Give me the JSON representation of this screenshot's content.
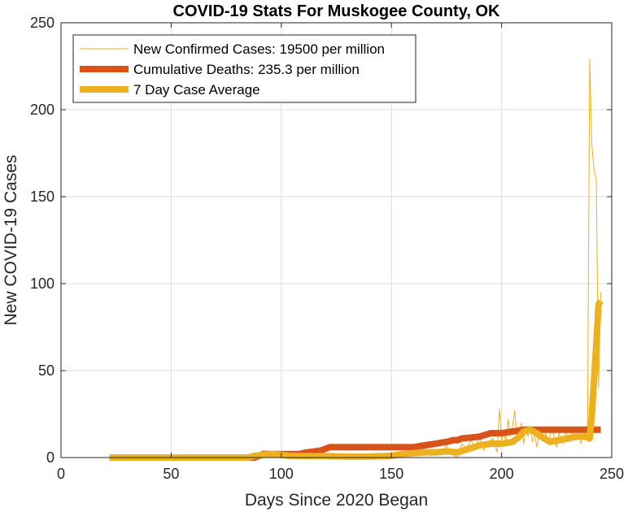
{
  "chart_data": {
    "type": "line",
    "title": "COVID-19 Stats For Muskogee County, OK",
    "xlabel": "Days Since 2020 Began",
    "ylabel": "New COVID-19 Cases",
    "xlim": [
      0,
      250
    ],
    "ylim": [
      0,
      250
    ],
    "xticks": [
      0,
      50,
      100,
      150,
      200,
      250
    ],
    "yticks": [
      0,
      50,
      100,
      150,
      200,
      250
    ],
    "grid": true,
    "legend_position": "top-left",
    "series": [
      {
        "name": "New Confirmed Cases: 19500 per million",
        "color": "#EDB120",
        "style": "thin",
        "x": [
          22,
          60,
          85,
          88,
          90,
          92,
          95,
          98,
          100,
          103,
          106,
          110,
          115,
          120,
          125,
          130,
          135,
          140,
          145,
          150,
          155,
          158,
          160,
          163,
          165,
          168,
          170,
          173,
          175,
          177,
          180,
          182,
          184,
          186,
          188,
          190,
          192,
          194,
          196,
          198,
          199,
          200,
          201,
          202,
          203,
          204,
          205,
          206,
          207,
          208,
          209,
          210,
          211,
          212,
          213,
          214,
          215,
          216,
          217,
          218,
          219,
          220,
          221,
          222,
          223,
          224,
          225,
          226,
          227,
          228,
          229,
          230,
          231,
          232,
          233,
          234,
          235,
          236,
          237,
          238,
          239,
          240,
          241,
          242,
          243,
          244,
          245
        ],
        "y": [
          0,
          0,
          0,
          2,
          0,
          4,
          1,
          3,
          0,
          2,
          1,
          0,
          2,
          0,
          1,
          0,
          0,
          1,
          2,
          0,
          3,
          1,
          5,
          2,
          6,
          1,
          4,
          3,
          7,
          2,
          0,
          8,
          5,
          10,
          6,
          12,
          4,
          9,
          11,
          3,
          28,
          10,
          15,
          8,
          22,
          12,
          18,
          27,
          10,
          14,
          20,
          8,
          16,
          12,
          18,
          9,
          14,
          6,
          12,
          16,
          10,
          14,
          8,
          12,
          18,
          10,
          6,
          14,
          11,
          8,
          15,
          13,
          9,
          16,
          12,
          10,
          14,
          8,
          12,
          16,
          10,
          229,
          180,
          165,
          160,
          40,
          95
        ]
      },
      {
        "name": "Cumulative Deaths: 235.3 per million",
        "color": "#D95319",
        "style": "thick",
        "x": [
          22,
          88,
          92,
          108,
          112,
          118,
          122,
          160,
          165,
          170,
          175,
          178,
          180,
          182,
          190,
          195,
          200,
          205,
          210,
          245
        ],
        "y": [
          0,
          0,
          2,
          2,
          3,
          4,
          6,
          6,
          7,
          8,
          9,
          10,
          10,
          11,
          12,
          14,
          14,
          15,
          16,
          16
        ]
      },
      {
        "name": "7 Day Case Average",
        "color": "#EDB120",
        "style": "thick",
        "x": [
          22,
          60,
          85,
          88,
          92,
          96,
          100,
          104,
          110,
          120,
          130,
          140,
          150,
          155,
          160,
          165,
          170,
          175,
          180,
          185,
          190,
          195,
          200,
          205,
          208,
          210,
          213,
          216,
          218,
          222,
          226,
          230,
          234,
          238,
          240,
          241,
          242,
          243,
          244,
          245
        ],
        "y": [
          0,
          0,
          0,
          1,
          1.5,
          2,
          1.5,
          1,
          0.8,
          0.8,
          0.5,
          0.6,
          1,
          2,
          2.5,
          3,
          3,
          3.5,
          3,
          5,
          7,
          8,
          8,
          9,
          12,
          15,
          16,
          14,
          12,
          9,
          10,
          11,
          12,
          12,
          11,
          25,
          45,
          65,
          88,
          90
        ]
      }
    ]
  }
}
